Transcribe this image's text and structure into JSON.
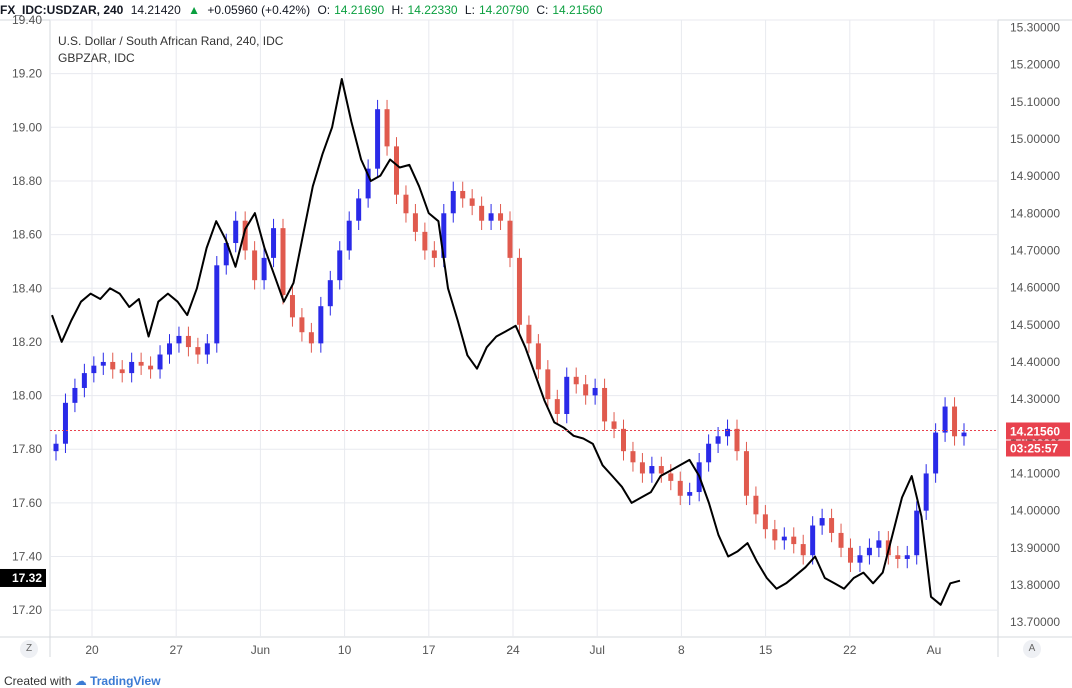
{
  "header": {
    "symbol": "FX_IDC:USDZAR, 240",
    "last": "14.21420",
    "change_arrow": "▲",
    "change": "+0.05960 (+0.42%)",
    "o_label": "O:",
    "o_value": "14.21690",
    "h_label": "H:",
    "h_value": "14.22330",
    "l_label": "L:",
    "l_value": "14.20790",
    "c_label": "C:",
    "c_value": "14.21560"
  },
  "legend": {
    "main": "U.S. Dollar / South African Rand, 240, IDC",
    "compare": "GBPZAR, IDC"
  },
  "chart_data": {
    "type": "line",
    "x_ticks": [
      "20",
      "27",
      "Jun",
      "10",
      "17",
      "24",
      "Jul",
      "8",
      "15",
      "22",
      "Au"
    ],
    "left_axis_ticks": [
      "19.40",
      "19.20",
      "19.00",
      "18.80",
      "18.60",
      "18.40",
      "18.20",
      "18.00",
      "17.80",
      "17.60",
      "17.40",
      "17.20"
    ],
    "right_axis_ticks": [
      "15.30000",
      "15.20000",
      "15.10000",
      "15.00000",
      "14.90000",
      "14.80000",
      "14.70000",
      "14.60000",
      "14.50000",
      "14.40000",
      "14.30000",
      "14.20000",
      "14.10000",
      "14.00000",
      "13.90000",
      "13.80000",
      "13.70000"
    ],
    "left_ylim": [
      17.1,
      19.4
    ],
    "right_ylim": [
      13.66,
      15.32
    ],
    "current_price_label": "14.21560",
    "countdown_label": "03:25:57",
    "left_badge": "17.32",
    "series": [
      {
        "name": "USDZAR",
        "style": "candles",
        "axis": "right",
        "values": [
          14.18,
          14.29,
          14.33,
          14.37,
          14.39,
          14.4,
          14.38,
          14.37,
          14.4,
          14.39,
          14.38,
          14.42,
          14.45,
          14.47,
          14.44,
          14.42,
          14.45,
          14.66,
          14.72,
          14.78,
          14.7,
          14.62,
          14.68,
          14.76,
          14.58,
          14.52,
          14.48,
          14.45,
          14.55,
          14.62,
          14.7,
          14.78,
          14.84,
          14.92,
          15.08,
          14.98,
          14.85,
          14.8,
          14.75,
          14.7,
          14.68,
          14.8,
          14.86,
          14.84,
          14.82,
          14.78,
          14.8,
          14.78,
          14.68,
          14.5,
          14.45,
          14.38,
          14.3,
          14.26,
          14.36,
          14.34,
          14.31,
          14.33,
          14.24,
          14.22,
          14.16,
          14.13,
          14.1,
          14.12,
          14.1,
          14.08,
          14.04,
          14.05,
          14.13,
          14.18,
          14.2,
          14.22,
          14.16,
          14.04,
          13.99,
          13.95,
          13.92,
          13.93,
          13.91,
          13.88,
          13.96,
          13.98,
          13.94,
          13.9,
          13.86,
          13.88,
          13.9,
          13.92,
          13.88,
          13.87,
          13.88,
          14.0,
          14.1,
          14.21,
          14.28,
          14.2,
          14.21
        ]
      },
      {
        "name": "GBPZAR",
        "style": "line",
        "axis": "left",
        "values": [
          18.3,
          18.2,
          18.28,
          18.35,
          18.38,
          18.36,
          18.4,
          18.38,
          18.33,
          18.36,
          18.22,
          18.35,
          18.38,
          18.35,
          18.3,
          18.4,
          18.55,
          18.65,
          18.58,
          18.48,
          18.62,
          18.68,
          18.55,
          18.45,
          18.35,
          18.42,
          18.6,
          18.78,
          18.9,
          19.0,
          19.18,
          19.02,
          18.88,
          18.8,
          18.82,
          18.88,
          18.85,
          18.86,
          18.78,
          18.68,
          18.65,
          18.4,
          18.28,
          18.15,
          18.1,
          18.18,
          18.22,
          18.24,
          18.26,
          18.18,
          18.08,
          17.98,
          17.9,
          17.88,
          17.85,
          17.84,
          17.82,
          17.74,
          17.7,
          17.66,
          17.6,
          17.62,
          17.64,
          17.7,
          17.72,
          17.74,
          17.76,
          17.7,
          17.6,
          17.48,
          17.4,
          17.42,
          17.45,
          17.38,
          17.32,
          17.28,
          17.3,
          17.33,
          17.36,
          17.4,
          17.32,
          17.3,
          17.28,
          17.32,
          17.34,
          17.3,
          17.34,
          17.48,
          17.62,
          17.7,
          17.55,
          17.25,
          17.22,
          17.3,
          17.31
        ]
      }
    ],
    "grid": true
  },
  "footer": {
    "prefix": "Created with",
    "brand": "TradingView"
  },
  "corner_buttons": {
    "left": "Z",
    "right": "A"
  },
  "colors": {
    "up_candle": "#2a2ae8",
    "down_candle": "#e05a4e",
    "compare_line": "#000000",
    "price_line": "#e8424e",
    "grid": "#e8eaef"
  }
}
